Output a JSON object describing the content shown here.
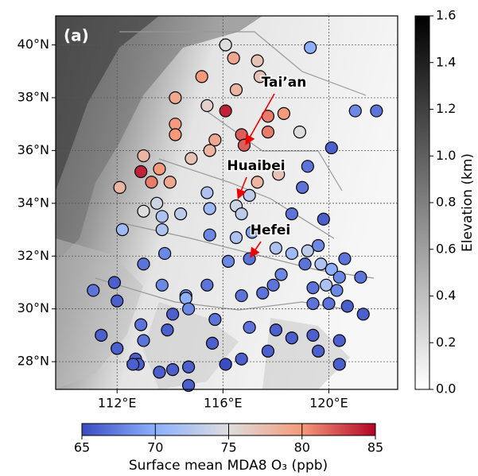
{
  "chart_data": {
    "type": "scatter",
    "title": "(a)",
    "x": [
      116.1,
      119.3,
      116.4,
      117.3,
      115.2,
      117.4,
      116.5,
      114.2,
      115.4,
      116.1,
      121.0,
      121.8,
      114.2,
      114.2,
      116.7,
      117.7,
      118.3,
      117.7,
      116.8,
      118.9,
      115.7,
      120.1,
      113.0,
      114.8,
      115.5,
      112.9,
      113.6,
      113.3,
      114.0,
      112.1,
      117.3,
      118.1,
      119.2,
      115.4,
      117.0,
      119.0,
      113.5,
      113.0,
      114.4,
      113.7,
      115.5,
      116.5,
      116.7,
      118.6,
      119.8,
      112.2,
      113.7,
      115.5,
      116.5,
      117.1,
      118.0,
      119.2,
      119.6,
      118.6,
      113.8,
      116.2,
      117.0,
      119.1,
      119.7,
      120.1,
      120.6,
      118.2,
      113.0,
      111.1,
      111.9,
      112.0,
      113.7,
      114.6,
      115.4,
      117.9,
      117.5,
      116.7,
      119.9,
      119.4,
      120.4,
      121.2,
      120.3,
      112.9,
      114.1,
      114.6,
      114.7,
      115.7,
      117.0,
      118.0,
      119.4,
      120.0,
      120.7,
      121.3,
      111.4,
      112.0,
      113.0,
      113.9,
      115.6,
      118.6,
      119.4,
      119.6,
      120.4,
      117.7,
      116.7,
      116.1,
      120.4,
      112.7,
      112.8,
      112.6,
      113.6,
      114.1,
      114.7,
      114.7
    ],
    "y": [
      40.0,
      39.9,
      39.5,
      39.4,
      38.8,
      38.8,
      38.3,
      38.0,
      37.7,
      37.5,
      37.5,
      37.5,
      37.0,
      36.6,
      36.6,
      37.3,
      37.4,
      36.7,
      36.2,
      36.7,
      36.4,
      36.1,
      35.8,
      35.7,
      36.0,
      35.2,
      35.3,
      34.8,
      34.8,
      34.6,
      34.8,
      35.1,
      35.4,
      34.4,
      34.3,
      34.6,
      34.0,
      33.7,
      33.6,
      33.5,
      33.8,
      33.9,
      33.6,
      33.6,
      33.4,
      33.0,
      33.0,
      32.8,
      32.7,
      32.9,
      32.3,
      32.2,
      32.4,
      32.1,
      32.1,
      31.8,
      31.9,
      31.7,
      31.7,
      31.5,
      31.9,
      31.3,
      31.7,
      30.7,
      31.0,
      30.3,
      30.9,
      30.5,
      30.9,
      30.9,
      30.6,
      30.5,
      30.9,
      30.8,
      31.2,
      31.2,
      30.7,
      29.4,
      29.8,
      30.4,
      30.0,
      29.6,
      29.3,
      29.2,
      30.2,
      30.2,
      30.1,
      29.8,
      29.0,
      28.5,
      28.8,
      29.2,
      28.7,
      28.9,
      29.0,
      28.4,
      28.8,
      28.4,
      28.1,
      27.9,
      27.9,
      28.1,
      27.9,
      27.9,
      27.6,
      27.7,
      27.8,
      27.1
    ],
    "values": [
      75,
      70,
      79,
      77,
      80,
      77,
      78,
      79,
      76,
      84,
      68,
      67,
      80,
      80,
      82,
      81,
      80,
      81,
      82,
      75,
      79,
      66,
      78,
      77,
      78,
      84,
      80,
      81,
      79,
      78,
      78,
      77,
      67,
      72,
      73,
      67,
      74,
      75,
      73,
      72,
      71,
      74,
      73,
      67,
      66,
      71,
      72,
      68,
      72,
      69,
      72,
      73,
      68,
      71,
      68,
      68,
      67,
      67,
      72,
      70,
      67,
      68,
      67,
      67,
      66,
      66,
      68,
      68,
      67,
      67,
      67,
      67,
      72,
      67,
      68,
      67,
      68,
      67,
      66,
      70,
      68,
      67,
      67,
      66,
      67,
      67,
      66,
      66,
      66,
      66,
      67,
      66,
      66,
      66,
      66,
      66,
      66,
      66,
      66,
      65,
      66,
      66,
      66,
      66,
      66,
      66,
      66,
      66
    ],
    "xlim": [
      109.68,
      122.6
    ],
    "ylim": [
      26.95,
      41.1
    ],
    "xticks": [
      {
        "value": 112,
        "label": "112°E"
      },
      {
        "value": 116,
        "label": "116°E"
      },
      {
        "value": 120,
        "label": "120°E"
      }
    ],
    "yticks": [
      {
        "value": 28,
        "label": "28°N"
      },
      {
        "value": 30,
        "label": "30°N"
      },
      {
        "value": 32,
        "label": "32°N"
      },
      {
        "value": 34,
        "label": "34°N"
      },
      {
        "value": 36,
        "label": "36°N"
      },
      {
        "value": 38,
        "label": "38°N"
      },
      {
        "value": 40,
        "label": "40°N"
      }
    ],
    "grid": true,
    "annotations": [
      "Tai’an",
      "Huaibei",
      "Hefei"
    ],
    "colorbar": {
      "label": "Surface mean MDA8 O₃ (ppb)",
      "lim": [
        65,
        85
      ],
      "ticks": [
        65,
        70,
        75,
        80,
        85
      ],
      "colormap": [
        "#3b4cc0",
        "#8db0fe",
        "#dddddd",
        "#f49a7b",
        "#b40426"
      ]
    },
    "elevation_colorbar": {
      "label": "Elevation (km)",
      "lim": [
        0,
        1.6
      ],
      "ticks": [
        {
          "value": 0,
          "label": "0.0"
        },
        0.2,
        0.4,
        0.6,
        0.8,
        {
          "value": 1,
          "label": "1.0"
        },
        1.2,
        1.4,
        1.6
      ],
      "colormap": [
        "#ffffff",
        "#000000"
      ]
    }
  }
}
